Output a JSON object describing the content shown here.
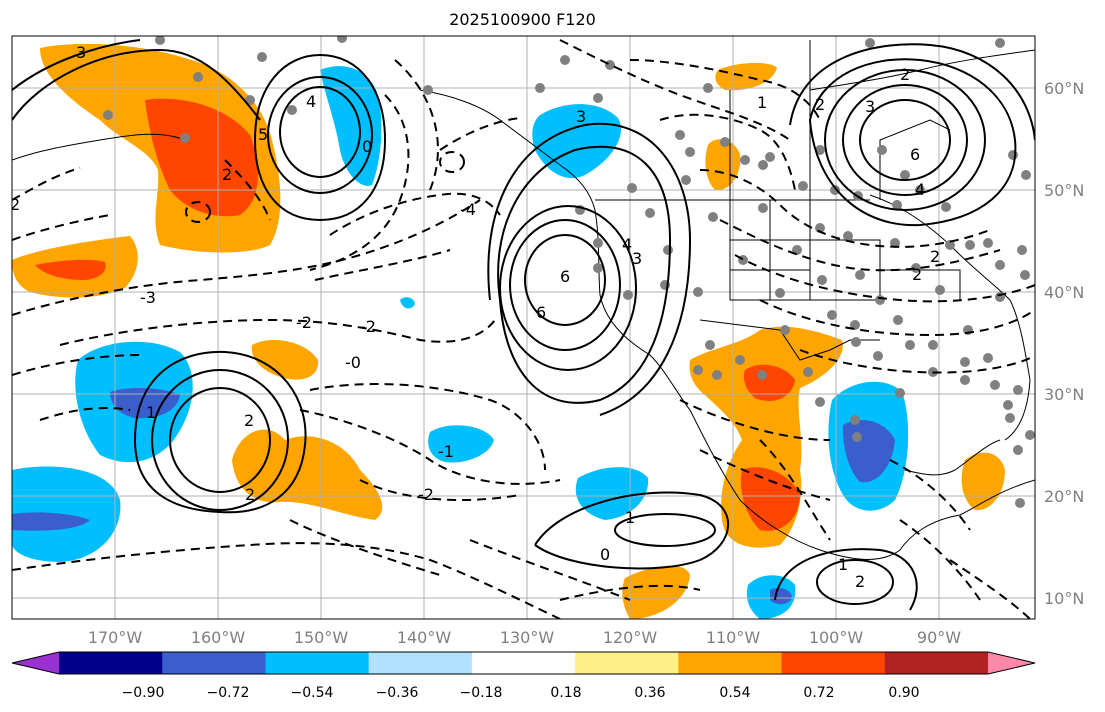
{
  "title": "2025100900 F120",
  "lon_labels": [
    "170°W",
    "160°W",
    "150°W",
    "140°W",
    "130°W",
    "120°W",
    "110°W",
    "100°W",
    "90°W"
  ],
  "lat_labels": [
    "60°N",
    "50°N",
    "40°N",
    "30°N",
    "20°N",
    "10°N"
  ],
  "colorbar": {
    "ticks": [
      "−0.90",
      "−0.72",
      "−0.54",
      "−0.36",
      "−0.18",
      "0.18",
      "0.36",
      "0.54",
      "0.72",
      "0.90"
    ],
    "colors": [
      "#9b30d0",
      "#00008b",
      "#3a5fcd",
      "#00bfff",
      "#b0e2ff",
      "#ffffff",
      "#fff08a",
      "#ffa500",
      "#ff4500",
      "#b22222",
      "#ff88aa"
    ]
  },
  "contour_labels": [
    "3",
    "4",
    "5",
    "0",
    "2",
    "1",
    "3",
    "4",
    "2",
    "-2",
    "-2",
    "-3",
    "-4",
    "-1",
    "-2",
    "-0",
    "0",
    "1",
    "2",
    "1",
    "2",
    "2",
    "6",
    "6",
    "3",
    "2",
    "1",
    "2",
    "3",
    "6",
    "4",
    "2",
    "2"
  ]
}
